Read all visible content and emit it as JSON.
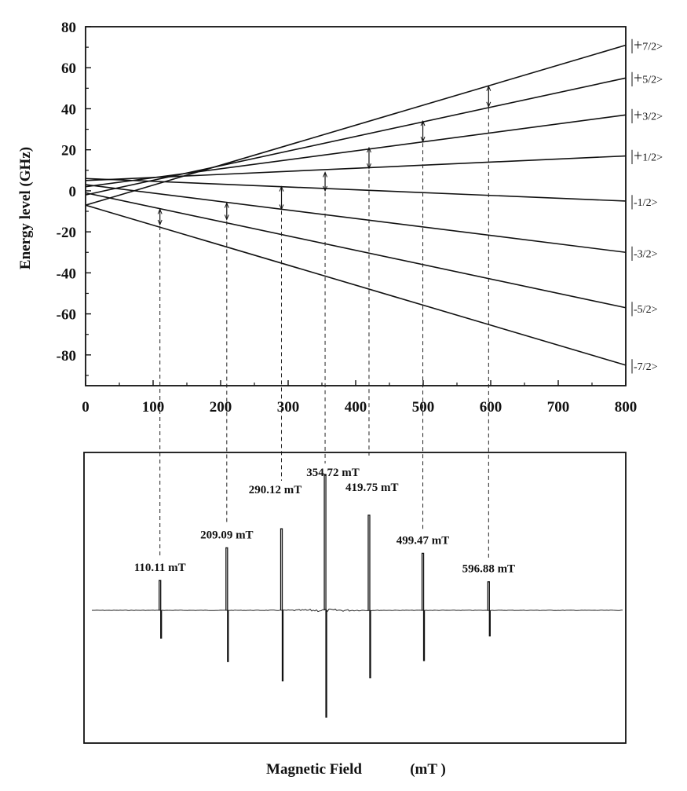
{
  "chart_data": [
    {
      "type": "line",
      "title": "",
      "xlabel": "",
      "ylabel": "Energy level (GHz)",
      "xlim": [
        0,
        800
      ],
      "ylim": [
        -95,
        80
      ],
      "x_ticks": [
        "0",
        "100",
        "200",
        "300",
        "400",
        "500",
        "600",
        "700",
        "800"
      ],
      "y_ticks": [
        "80",
        "60",
        "40",
        "20",
        "0",
        "-20",
        "-40",
        "-60",
        "-80"
      ],
      "grid": false,
      "series": [
        {
          "label_sign": "|+",
          "label_frac": "7/2>",
          "x": [
            0,
            800
          ],
          "y": [
            -7,
            71
          ]
        },
        {
          "label_sign": "|+",
          "label_frac": "5/2>",
          "x": [
            0,
            800
          ],
          "y": [
            -2,
            55
          ]
        },
        {
          "label_sign": "|+",
          "label_frac": "3/2>",
          "x": [
            0,
            800
          ],
          "y": [
            2,
            37
          ]
        },
        {
          "label_sign": "|+",
          "label_frac": "1/2>",
          "x": [
            0,
            800
          ],
          "y": [
            5,
            17
          ]
        },
        {
          "label_sign": "|",
          "label_frac": "-1/2>",
          "x": [
            0,
            800
          ],
          "y": [
            6,
            -5
          ]
        },
        {
          "label_sign": "|",
          "label_frac": "-3/2>",
          "x": [
            0,
            800
          ],
          "y": [
            3,
            -30
          ]
        },
        {
          "label_sign": "|",
          "label_frac": "-5/2>",
          "x": [
            0,
            800
          ],
          "y": [
            -1,
            -57
          ]
        },
        {
          "label_sign": "|",
          "label_frac": "-7/2>",
          "x": [
            0,
            800
          ],
          "y": [
            -7,
            -85
          ]
        }
      ],
      "transitions": [
        {
          "field": 110.11,
          "from": -16.5,
          "to": -9
        },
        {
          "field": 209.09,
          "from": -14,
          "to": -6
        },
        {
          "field": 290.12,
          "from": -9,
          "to": 2
        },
        {
          "field": 354.72,
          "from": 0,
          "to": 9
        },
        {
          "field": 419.75,
          "from": 11,
          "to": 21
        },
        {
          "field": 499.47,
          "from": 24,
          "to": 34
        },
        {
          "field": 596.88,
          "from": 41,
          "to": 51
        }
      ]
    },
    {
      "type": "line",
      "title": "",
      "xlabel": "Magnetic Field",
      "xunit": "(mT )",
      "ylabel": "",
      "peaks": [
        {
          "field": 110.11,
          "label": "110.11 mT",
          "up": 0.22,
          "down": 0.26
        },
        {
          "field": 209.09,
          "label": "209.09  mT",
          "up": 0.46,
          "down": 0.48
        },
        {
          "field": 290.12,
          "label": "290.12  mT",
          "up": 0.6,
          "down": 0.66
        },
        {
          "field": 354.72,
          "label": "354.72  mT",
          "up": 1.0,
          "down": 1.0
        },
        {
          "field": 419.75,
          "label": "419.75  mT",
          "up": 0.7,
          "down": 0.63
        },
        {
          "field": 499.47,
          "label": "499.47 mT",
          "up": 0.42,
          "down": 0.47
        },
        {
          "field": 596.88,
          "label": "596.88 mT",
          "up": 0.21,
          "down": 0.24
        }
      ]
    }
  ]
}
